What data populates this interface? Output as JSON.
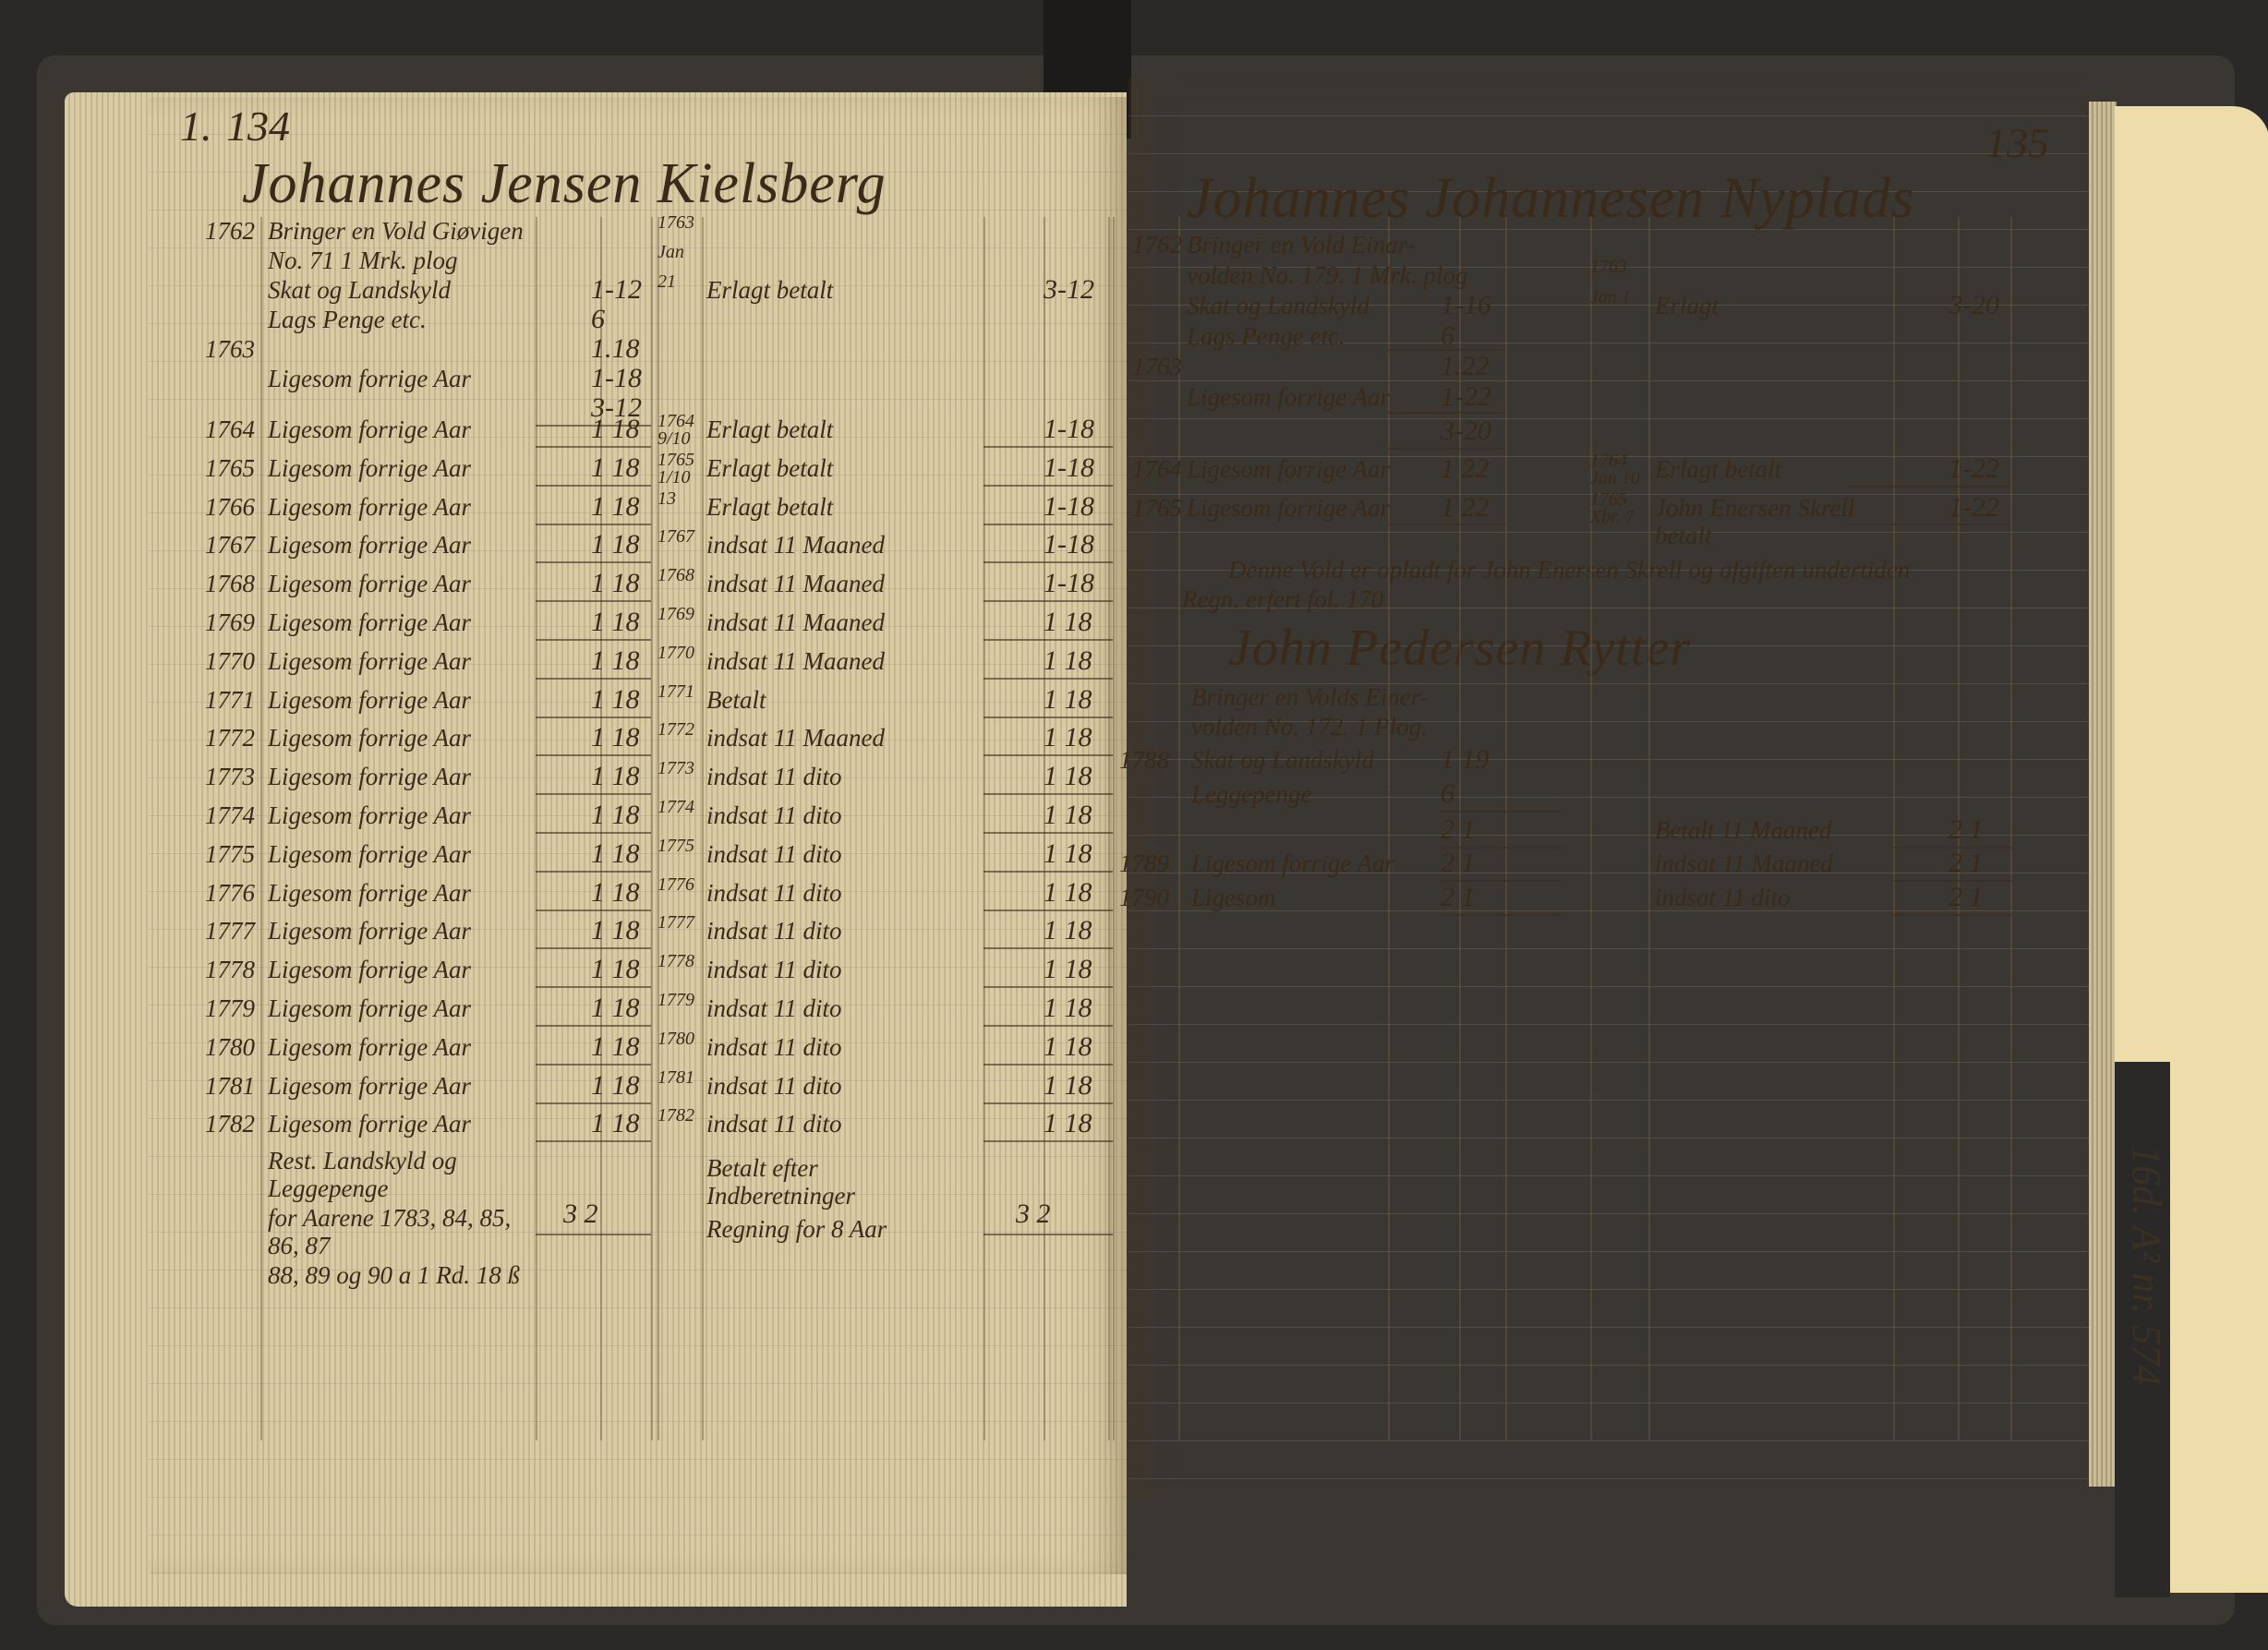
{
  "tab_label": "16d. A² nr. 574",
  "left_page": {
    "page_number": "134",
    "margin_mark": "1.",
    "title": "Johannes Jensen Kielsberg",
    "rows": [
      {
        "year": "1762",
        "desc": "Bringer en Vold Giøvigen",
        "amount": "",
        "rdate": "1763",
        "rdesc": "",
        "ramount": ""
      },
      {
        "year": "",
        "desc": "No. 71   1 Mrk. plog",
        "amount": "",
        "rdate": "Jan",
        "rdesc": "",
        "ramount": ""
      },
      {
        "year": "",
        "desc": "Skat og Landskyld",
        "amount": "1-12",
        "rdate": "21",
        "rdesc": "Erlagt betalt",
        "ramount": "3-12"
      },
      {
        "year": "",
        "desc": "Lags Penge etc.",
        "amount": "6",
        "rdate": "",
        "rdesc": "",
        "ramount": ""
      },
      {
        "year": "1763",
        "desc": "",
        "amount": "1.18",
        "rdate": "",
        "rdesc": "",
        "ramount": ""
      },
      {
        "year": "",
        "desc": "Ligesom forrige Aar",
        "amount": "1-18",
        "rdate": "",
        "rdesc": "",
        "ramount": ""
      },
      {
        "year": "",
        "desc": "",
        "amount": "3-12",
        "rdate": "",
        "rdesc": "",
        "ramount": ""
      },
      {
        "year": "1764",
        "desc": "Ligesom forrige Aar",
        "amount": "1 18",
        "rdate": "1764 9/10",
        "rdesc": "Erlagt betalt",
        "ramount": "1-18"
      },
      {
        "year": "1765",
        "desc": "Ligesom forrige Aar",
        "amount": "1 18",
        "rdate": "1765 1/10",
        "rdesc": "Erlagt betalt",
        "ramount": "1-18"
      },
      {
        "year": "1766",
        "desc": "Ligesom forrige Aar",
        "amount": "1 18",
        "rdate": "13",
        "rdesc": "Erlagt betalt",
        "ramount": "1-18"
      },
      {
        "year": "1767",
        "desc": "Ligesom forrige Aar",
        "amount": "1 18",
        "rdate": "1767",
        "rdesc": "indsat 11 Maaned",
        "ramount": "1-18"
      },
      {
        "year": "1768",
        "desc": "Ligesom forrige Aar",
        "amount": "1 18",
        "rdate": "1768",
        "rdesc": "indsat 11 Maaned",
        "ramount": "1-18"
      },
      {
        "year": "1769",
        "desc": "Ligesom forrige Aar",
        "amount": "1 18",
        "rdate": "1769",
        "rdesc": "indsat 11 Maaned",
        "ramount": "1 18"
      },
      {
        "year": "1770",
        "desc": "Ligesom forrige Aar",
        "amount": "1 18",
        "rdate": "1770",
        "rdesc": "indsat 11 Maaned",
        "ramount": "1 18"
      },
      {
        "year": "1771",
        "desc": "Ligesom forrige Aar",
        "amount": "1 18",
        "rdate": "1771",
        "rdesc": "Betalt",
        "ramount": "1 18"
      },
      {
        "year": "1772",
        "desc": "Ligesom forrige Aar",
        "amount": "1 18",
        "rdate": "1772",
        "rdesc": "indsat 11 Maaned",
        "ramount": "1 18"
      },
      {
        "year": "1773",
        "desc": "Ligesom forrige Aar",
        "amount": "1 18",
        "rdate": "1773",
        "rdesc": "indsat 11 dito",
        "ramount": "1 18"
      },
      {
        "year": "1774",
        "desc": "Ligesom forrige Aar",
        "amount": "1 18",
        "rdate": "1774",
        "rdesc": "indsat 11 dito",
        "ramount": "1 18"
      },
      {
        "year": "1775",
        "desc": "Ligesom forrige Aar",
        "amount": "1 18",
        "rdate": "1775",
        "rdesc": "indsat 11 dito",
        "ramount": "1 18"
      },
      {
        "year": "1776",
        "desc": "Ligesom forrige Aar",
        "amount": "1 18",
        "rdate": "1776",
        "rdesc": "indsat 11 dito",
        "ramount": "1 18"
      },
      {
        "year": "1777",
        "desc": "Ligesom forrige Aar",
        "amount": "1 18",
        "rdate": "1777",
        "rdesc": "indsat 11 dito",
        "ramount": "1 18"
      },
      {
        "year": "1778",
        "desc": "Ligesom forrige Aar",
        "amount": "1 18",
        "rdate": "1778",
        "rdesc": "indsat 11 dito",
        "ramount": "1 18"
      },
      {
        "year": "1779",
        "desc": "Ligesom forrige Aar",
        "amount": "1 18",
        "rdate": "1779",
        "rdesc": "indsat 11 dito",
        "ramount": "1 18"
      },
      {
        "year": "1780",
        "desc": "Ligesom forrige Aar",
        "amount": "1 18",
        "rdate": "1780",
        "rdesc": "indsat 11 dito",
        "ramount": "1 18"
      },
      {
        "year": "1781",
        "desc": "Ligesom forrige Aar",
        "amount": "1 18",
        "rdate": "1781",
        "rdesc": "indsat 11 dito",
        "ramount": "1 18"
      },
      {
        "year": "1782",
        "desc": "Ligesom forrige Aar",
        "amount": "1 18",
        "rdate": "1782",
        "rdesc": "indsat 11 dito",
        "ramount": "1 18"
      }
    ],
    "note": {
      "lines": [
        "Rest. Landskyld og Leggepenge",
        "for Aarene 1783, 84, 85, 86, 87",
        "88, 89 og 90 a 1 Rd. 18 ß"
      ],
      "amount": "3 2",
      "rlines": [
        "Betalt efter Indberetninger",
        "Regning for 8 Aar"
      ],
      "ramount": "3 2"
    }
  },
  "right_page": {
    "page_number": "135",
    "title": "Johannes Johannesen Nyplads",
    "rows": [
      {
        "year": "1762",
        "desc": "Bringer en Vold Einar-",
        "amount": "",
        "rdate": "",
        "rdesc": "",
        "ramount": ""
      },
      {
        "year": "",
        "desc": "volden No. 179. 1 Mrk. plog",
        "amount": "",
        "rdate": "1763",
        "rdesc": "",
        "ramount": ""
      },
      {
        "year": "",
        "desc": "Skat og Landskyld",
        "amount": "1-16",
        "rdate": "Jan 1",
        "rdesc": "Erlagt",
        "ramount": "3-20"
      },
      {
        "year": "",
        "desc": "Lags Penge etc.",
        "amount": "6",
        "rdate": "",
        "rdesc": "",
        "ramount": ""
      },
      {
        "year": "1763",
        "desc": "",
        "amount": "1.22",
        "rdate": "",
        "rdesc": "",
        "ramount": ""
      },
      {
        "year": "",
        "desc": "Ligesom forrige Aar",
        "amount": "1-22",
        "rdate": "",
        "rdesc": "",
        "ramount": ""
      },
      {
        "year": "",
        "desc": "",
        "amount": "3-20",
        "rdate": "",
        "rdesc": "",
        "ramount": ""
      },
      {
        "year": "1764",
        "desc": "Ligesom forrige Aar",
        "amount": "1 22",
        "rdate": "1764 Jan 10",
        "rdesc": "Erlagt betalt",
        "ramount": "1-22"
      },
      {
        "year": "1765",
        "desc": "Ligesom forrige Aar",
        "amount": "1 22",
        "rdate": "1765 Xbr. 7",
        "rdesc": "John Enersen Skrell betalt",
        "ramount": "1-22"
      }
    ],
    "note_lines": [
      "Denne Vold er opladt for John Enersen Skrell og afgiften undertiden",
      "Regn. erfert fol. 170"
    ],
    "second_account": {
      "title": "John Pedersen Rytter",
      "intro": [
        "Bringer en Volds Einer-",
        "volden No. 172. 1 Plog."
      ],
      "rows": [
        {
          "year": "1788",
          "desc": "Skat og Landskyld",
          "amount": "1 19",
          "rdesc": "",
          "ramount": ""
        },
        {
          "year": "",
          "desc": "Leggepenge",
          "amount": "6",
          "rdesc": "",
          "ramount": ""
        },
        {
          "year": "",
          "desc": "",
          "amount": "2 1",
          "rdesc": "Betalt 11 Maaned",
          "ramount": "2 1"
        },
        {
          "year": "1789",
          "desc": "Ligesom forrige Aar",
          "amount": "2 1",
          "rdesc": "indsat 11 Maaned",
          "ramount": "2 1"
        },
        {
          "year": "1790",
          "desc": "Ligesom",
          "amount": "2 1",
          "rdesc": "indsat 11 dito",
          "ramount": "2 1"
        }
      ]
    }
  }
}
